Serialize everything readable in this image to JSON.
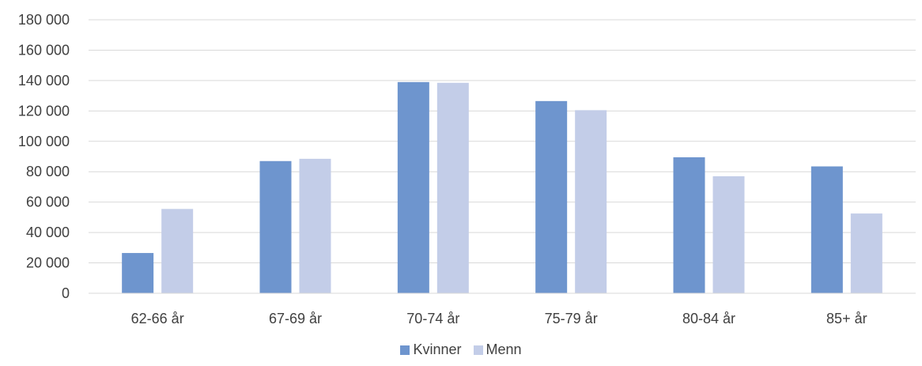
{
  "chart_data": {
    "type": "bar",
    "categories": [
      "62-66 år",
      "67-69 år",
      "70-74 år",
      "75-79 år",
      "80-84 år",
      "85+ år"
    ],
    "series": [
      {
        "name": "Kvinner",
        "values": [
          26500,
          87000,
          139000,
          126500,
          89500,
          83500
        ],
        "color": "#6e95ce"
      },
      {
        "name": "Menn",
        "values": [
          55500,
          88500,
          138500,
          120500,
          77000,
          52500
        ],
        "color": "#c3cde8"
      }
    ],
    "yticks": [
      "0",
      "20 000",
      "40 000",
      "60 000",
      "80 000",
      "100 000",
      "120 000",
      "140 000",
      "160 000",
      "180 000"
    ],
    "ylim": [
      0,
      180000
    ],
    "grid": true,
    "legend_position": "bottom",
    "title": "",
    "xlabel": "",
    "ylabel": ""
  }
}
